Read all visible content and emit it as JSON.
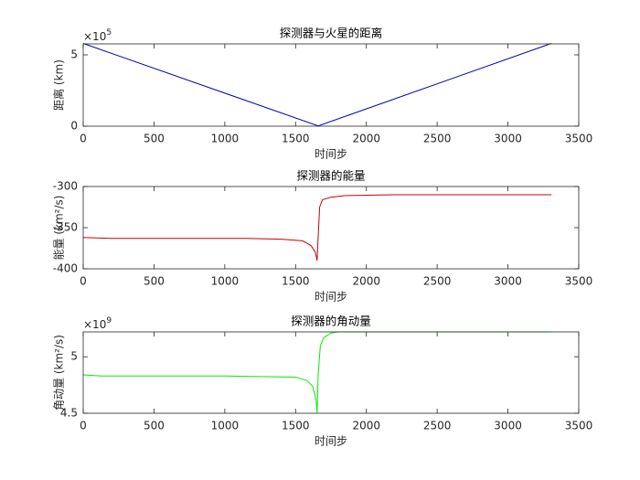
{
  "chart_data": [
    {
      "type": "line",
      "title": "探测器与火星的距离",
      "xlabel": "时间步",
      "ylabel": "距离 (km)",
      "y_multiplier": {
        "base": "×10",
        "exponent": "5"
      },
      "x": [
        0,
        1660,
        3306
      ],
      "values": [
        5.8,
        0.02,
        5.8
      ],
      "color": "#0000b0",
      "xlim": [
        0,
        3500
      ],
      "ylim": [
        0,
        5.77
      ],
      "xticks": [
        0,
        500,
        1000,
        1500,
        2000,
        2500,
        3000,
        3500
      ],
      "yticks": [
        0,
        5
      ],
      "grid": false
    },
    {
      "type": "line",
      "title": "探测器的能量",
      "xlabel": "时间步",
      "ylabel": "能量 (km²/s)",
      "x": [
        0,
        200,
        1150,
        1400,
        1550,
        1610,
        1640,
        1652,
        1660,
        1670,
        1690,
        1750,
        1850,
        2200,
        3306
      ],
      "values": [
        -362,
        -363,
        -363,
        -364,
        -366,
        -372,
        -380,
        -390,
        -360,
        -325,
        -316,
        -313,
        -311,
        -310,
        -310
      ],
      "color": "#cc0000",
      "xlim": [
        0,
        3500
      ],
      "ylim": [
        -400,
        -300
      ],
      "xticks": [
        0,
        500,
        1000,
        1500,
        2000,
        2500,
        3000,
        3500
      ],
      "yticks": [
        -400,
        -350,
        -300
      ],
      "grid": false
    },
    {
      "type": "line",
      "title": "探测器的角动量",
      "xlabel": "时间步",
      "ylabel": "角动量 (km²/s)",
      "y_multiplier": {
        "base": "×10",
        "exponent": "9"
      },
      "x": [
        0,
        130,
        1000,
        1500,
        1580,
        1620,
        1645,
        1652,
        1660,
        1675,
        1700,
        1750,
        1800,
        3306
      ],
      "values": [
        4.84,
        4.83,
        4.83,
        4.82,
        4.79,
        4.74,
        4.62,
        4.5,
        4.85,
        5.1,
        5.17,
        5.21,
        5.22,
        5.22
      ],
      "color": "#00ee00",
      "xlim": [
        0,
        3500
      ],
      "ylim": [
        4.5,
        5.22
      ],
      "xticks": [
        0,
        500,
        1000,
        1500,
        2000,
        2500,
        3000,
        3500
      ],
      "yticks": [
        4.5,
        5
      ],
      "grid": false
    }
  ]
}
